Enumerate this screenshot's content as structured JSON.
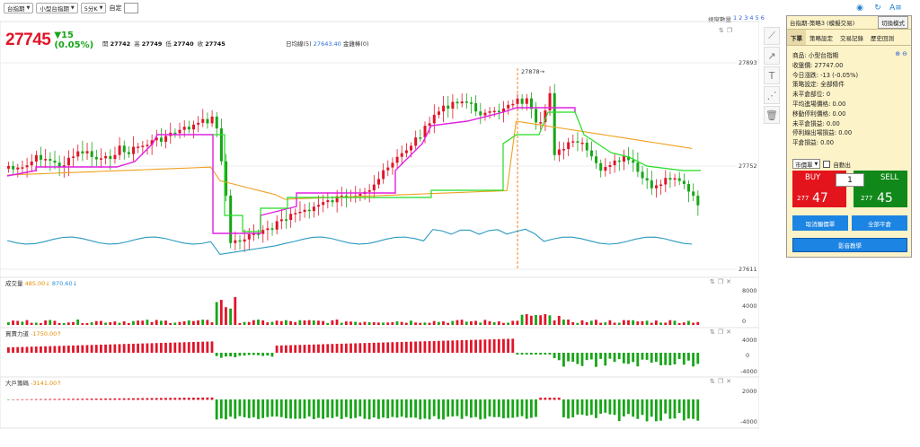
{
  "toolbar": {
    "symbol_select": "台指期",
    "contract_select": "小型台指期",
    "period_select": "5分K",
    "custom_label": "自定"
  },
  "view_count": {
    "label": "視窗數量",
    "options": [
      "1",
      "2",
      "3",
      "4",
      "5",
      "6"
    ]
  },
  "quote": {
    "price": "27745",
    "change": "▼15",
    "change_pct": "(0.05%)",
    "open_label": "開",
    "open": "27742",
    "high_label": "高",
    "high": "27749",
    "low_label": "低",
    "low": "27740",
    "close_label": "收",
    "close": "27745"
  },
  "ma_legend": {
    "label": "日均線(5)",
    "value": "27643.40",
    "suffix": "金雞棒(0)"
  },
  "price_axis": [
    "27893",
    "27752",
    "27611"
  ],
  "annotation": "27878→",
  "panels": {
    "volume": {
      "title": "成交量",
      "v1": "485.00↓",
      "v2": "870.60↓",
      "ticks": [
        "8000",
        "4000",
        "0"
      ]
    },
    "force": {
      "title": "買賣力道",
      "v1": "-1750.00↑",
      "ticks": [
        "4000",
        "0",
        "-4000"
      ]
    },
    "big": {
      "title": "大戶籌碼",
      "v1": "-3141.00↑",
      "ticks": [
        "2000",
        "-4000"
      ]
    }
  },
  "tools": [
    "line-tool-icon",
    "ray-tool-icon",
    "text-tool-icon",
    "fan-tool-icon",
    "trash-icon"
  ],
  "side_panel": {
    "header": "台指期-策略3 (模擬交易)",
    "mode_button": "切換模式",
    "tabs": [
      "下單",
      "策略設定",
      "交易記錄",
      "歷史回測"
    ],
    "info": [
      "商品: 小型台指期",
      "收盤價: 27747.00",
      "今日漲跌: -13 (-0.05%)",
      "策略設定: 全部條件",
      "未平倉部位: 0",
      "平均進場價格: 0.00",
      "移動停利價格: 0.00",
      "未平倉損益: 0.00",
      "停利線出場損益: 0.00",
      "平倉損益: 0.00"
    ],
    "order_type": "市價單",
    "auto_exit": "自動出",
    "buy_label": "BUY",
    "sell_label": "SELL",
    "qty": "1",
    "buy_price_prefix": "277",
    "buy_price_suffix": "47",
    "sell_price_prefix": "277",
    "sell_price_suffix": "45",
    "cancel_btn": "取消觸價單",
    "flatten_btn": "全部平倉",
    "video_btn": "影音教學"
  },
  "colors": {
    "up": "#e0152a",
    "down": "#17a517",
    "ma_magenta": "#e020e0",
    "ma_green": "#22dd22",
    "ma_orange": "#f0a020",
    "ma_blue": "#2a9ac0"
  }
}
